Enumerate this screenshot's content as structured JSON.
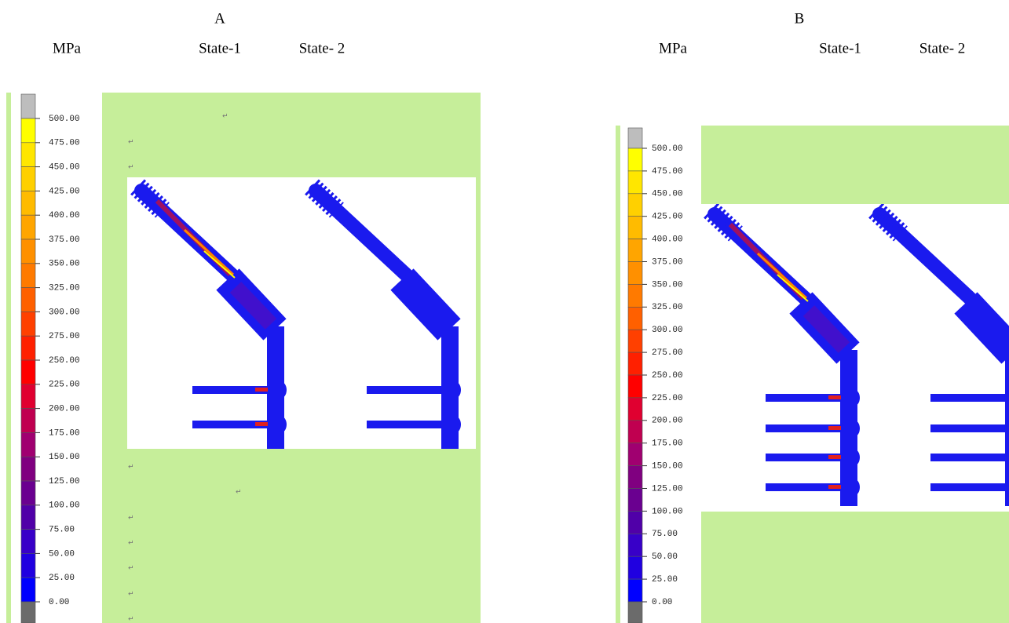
{
  "panels": [
    {
      "label": "A",
      "unit": "MPa",
      "states": [
        "State-1",
        "State- 2"
      ],
      "scale": [
        "500.00",
        "475.00",
        "450.00",
        "425.00",
        "400.00",
        "375.00",
        "350.00",
        "325.00",
        "300.00",
        "275.00",
        "250.00",
        "225.00",
        "200.00",
        "175.00",
        "150.00",
        "125.00",
        "100.00",
        "75.00",
        "50.00",
        "25.00",
        "0.00"
      ],
      "marks": [
        "↵",
        "↵",
        "↵",
        "↵",
        "↵",
        "↵",
        "↵",
        "↵",
        "↵",
        "↵"
      ]
    },
    {
      "label": "B",
      "unit": "MPa",
      "states": [
        "State-1",
        "State- 2"
      ],
      "scale": [
        "500.00",
        "475.00",
        "450.00",
        "425.00",
        "400.00",
        "375.00",
        "350.00",
        "325.00",
        "300.00",
        "275.00",
        "250.00",
        "225.00",
        "200.00",
        "175.00",
        "150.00",
        "125.00",
        "100.00",
        "75.00",
        "50.00",
        "25.00",
        "0.00"
      ]
    }
  ]
}
